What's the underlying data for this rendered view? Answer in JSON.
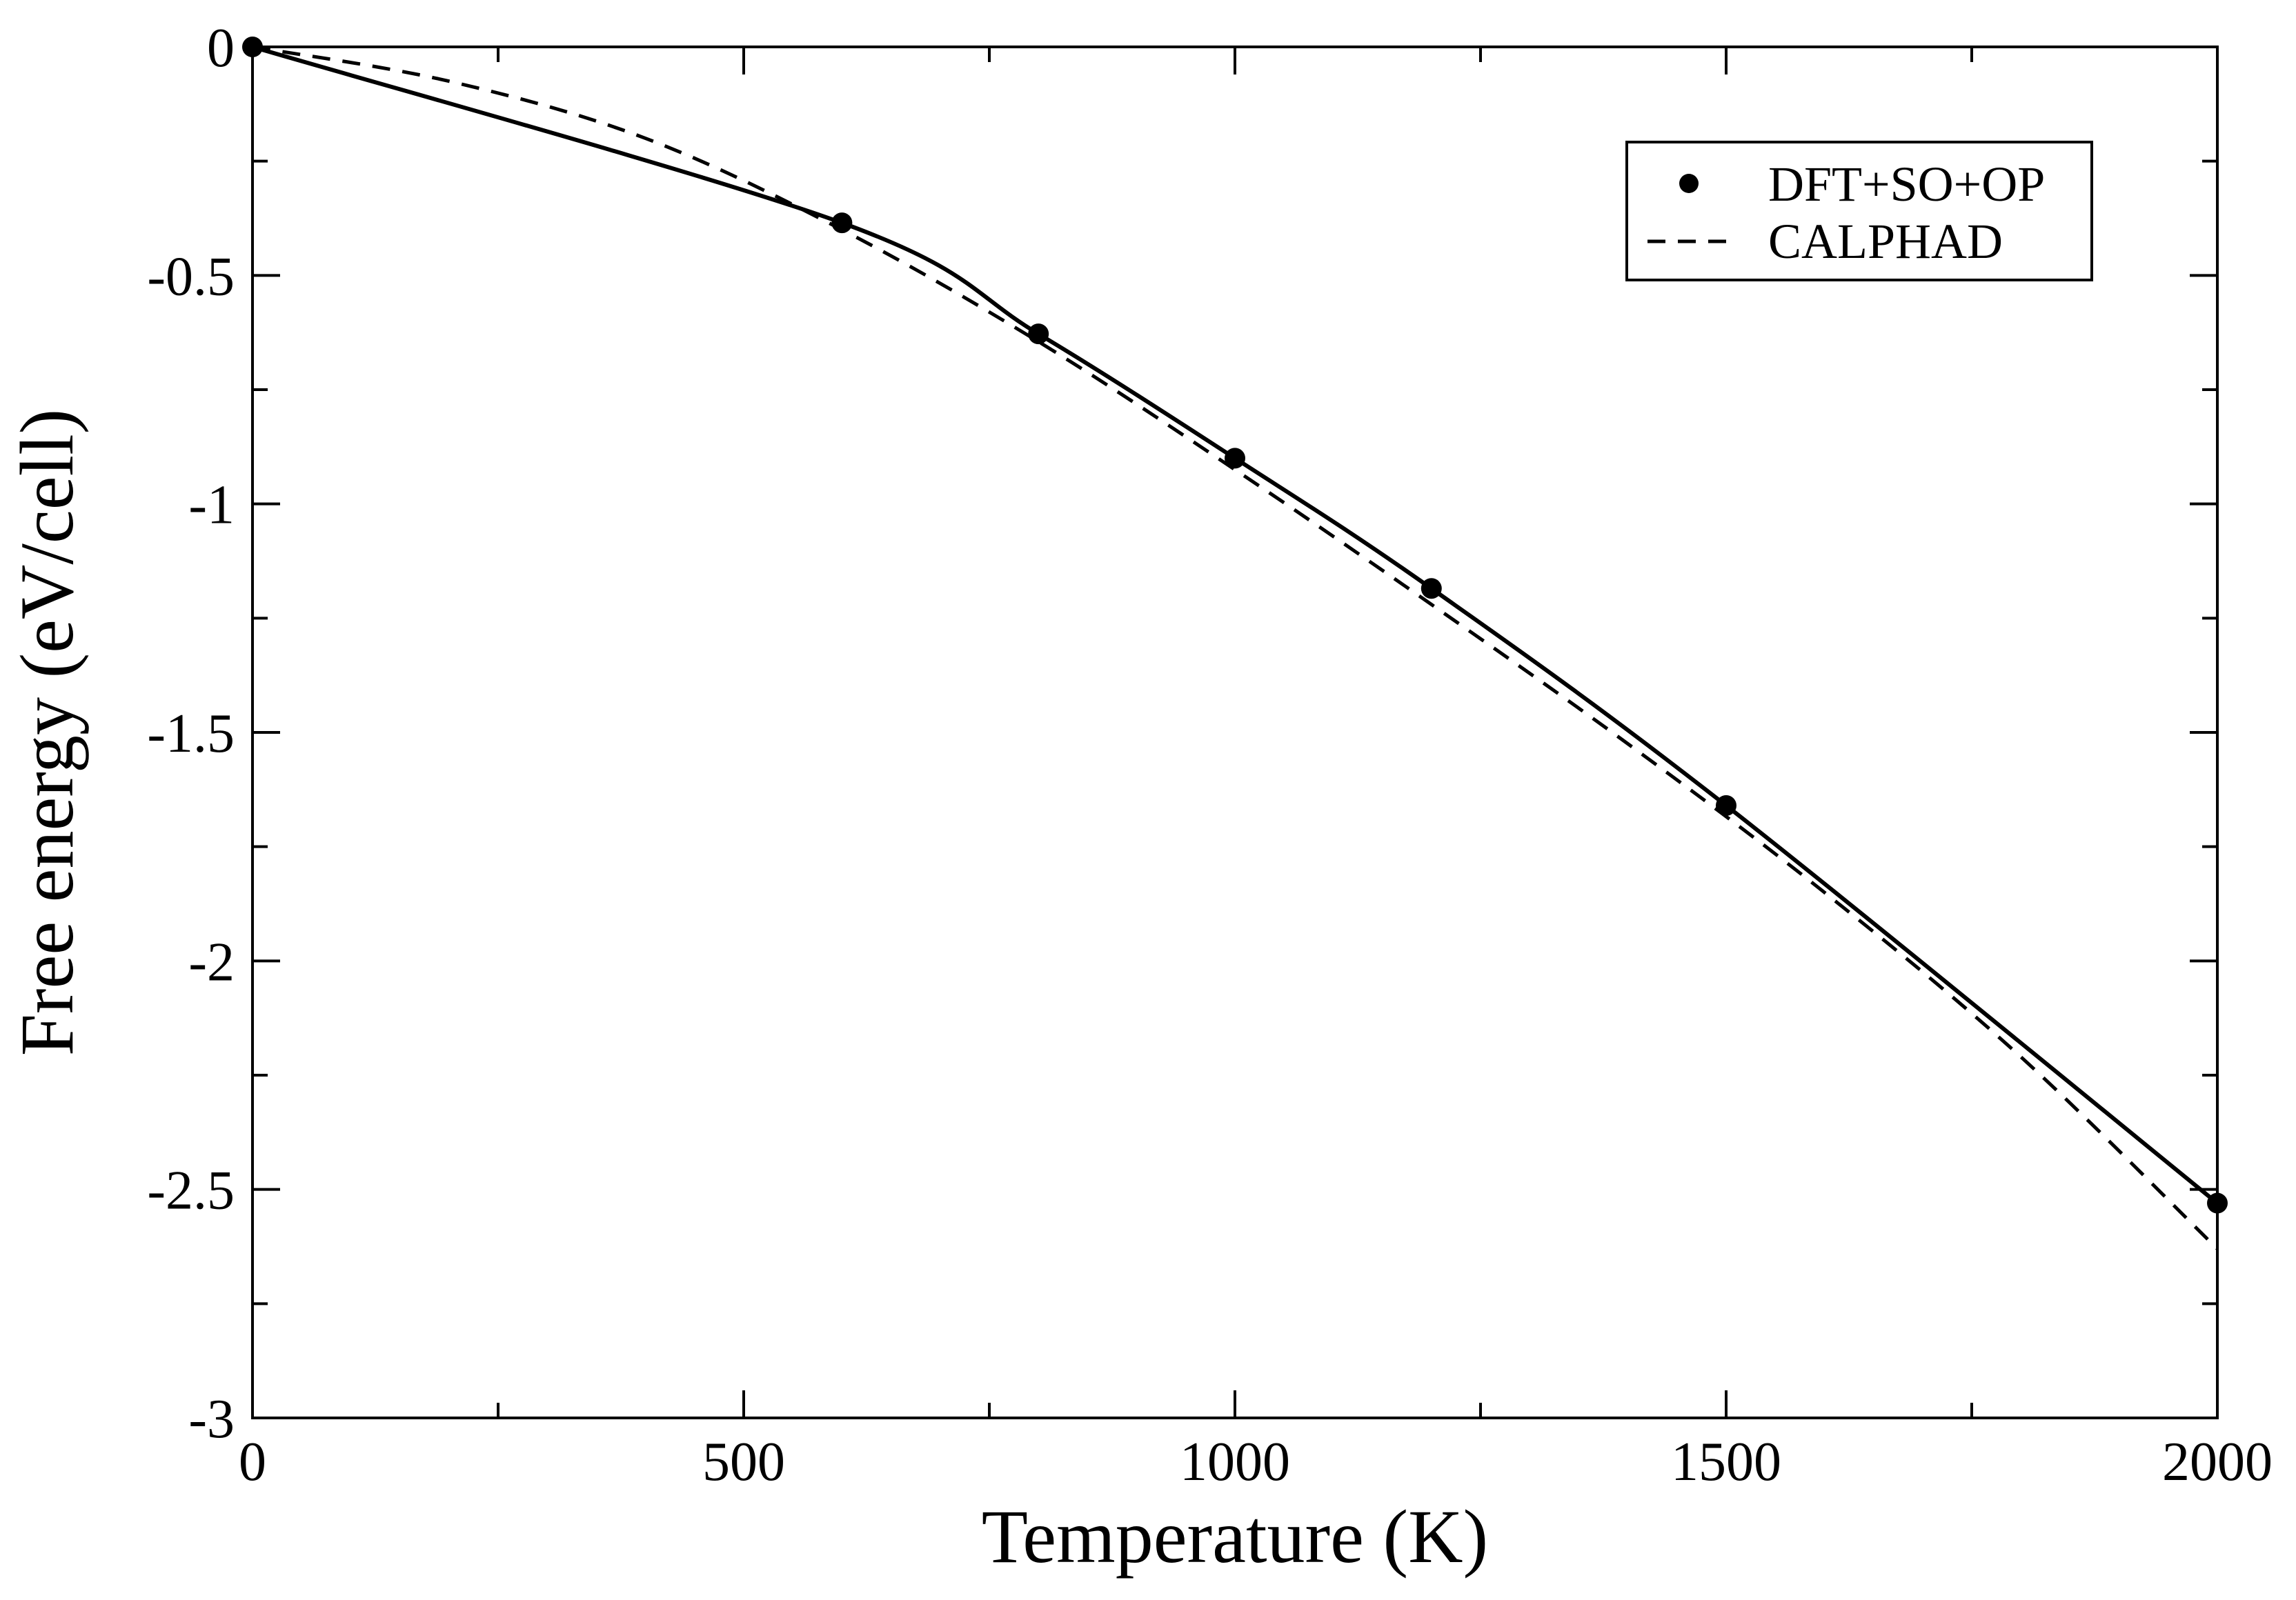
{
  "chart_data": {
    "type": "line",
    "xlabel": "Temperature (K)",
    "ylabel": "Free energy (eV/cell)",
    "xlim": [
      0,
      2000
    ],
    "ylim": [
      -3,
      0
    ],
    "x_ticks": [
      0,
      500,
      1000,
      1500,
      2000
    ],
    "x_tick_labels": [
      "0",
      "500",
      "1000",
      "1500",
      "2000"
    ],
    "y_ticks": [
      0,
      -0.5,
      -1,
      -1.5,
      -2,
      -2.5,
      -3
    ],
    "y_tick_labels": [
      "0",
      "-0.5",
      "-1",
      "-1.5",
      "-2",
      "-2.5",
      "-3"
    ],
    "grid": false,
    "legend_position": "top-right",
    "series": [
      {
        "name": "DFT+SO+OP",
        "style": "solid line with filled circle markers",
        "color": "#000000",
        "x": [
          0,
          600,
          800,
          1000,
          1200,
          1500,
          2000
        ],
        "y": [
          0,
          -0.385,
          -0.628,
          -0.9,
          -1.185,
          -1.66,
          -2.53
        ]
      },
      {
        "name": "CALPHAD",
        "style": "dashed line",
        "color": "#000000",
        "x": [
          0,
          200,
          400,
          600,
          800,
          1000,
          1200,
          1400,
          1600,
          1800,
          2000
        ],
        "y": [
          0,
          -0.075,
          -0.2,
          -0.4,
          -0.645,
          -0.925,
          -1.22,
          -1.525,
          -1.85,
          -2.21,
          -2.63
        ]
      }
    ]
  }
}
